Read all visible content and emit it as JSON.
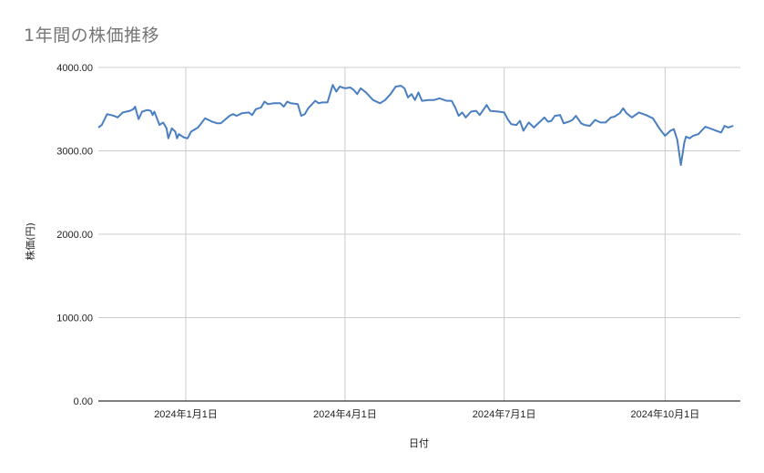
{
  "chart_data": {
    "type": "line",
    "title": "1年間の株価推移",
    "xlabel": "日付",
    "ylabel": "株価(円)",
    "ylim": [
      0,
      4000
    ],
    "y_ticks": [
      "0.00",
      "1000.00",
      "2000.00",
      "3000.00",
      "4000.00"
    ],
    "x_ticks": [
      "2024年1月1日",
      "2024年4月1日",
      "2024年7月1日",
      "2024年10月1日"
    ],
    "x_range": [
      "2023-11-12",
      "2024-11-13"
    ],
    "grid": true,
    "legend": "none",
    "series": [
      {
        "name": "株価",
        "color": "#4a7fc1",
        "points": [
          [
            "2023-11-12",
            3280
          ],
          [
            "2023-11-14",
            3310
          ],
          [
            "2023-11-17",
            3440
          ],
          [
            "2023-11-21",
            3420
          ],
          [
            "2023-11-23",
            3400
          ],
          [
            "2023-11-26",
            3460
          ],
          [
            "2023-11-30",
            3480
          ],
          [
            "2023-12-02",
            3500
          ],
          [
            "2023-12-03",
            3530
          ],
          [
            "2023-12-05",
            3380
          ],
          [
            "2023-12-07",
            3470
          ],
          [
            "2023-12-10",
            3490
          ],
          [
            "2023-12-12",
            3480
          ],
          [
            "2023-12-13",
            3430
          ],
          [
            "2023-12-14",
            3470
          ],
          [
            "2023-12-17",
            3310
          ],
          [
            "2023-12-19",
            3340
          ],
          [
            "2023-12-21",
            3270
          ],
          [
            "2023-12-22",
            3150
          ],
          [
            "2023-12-24",
            3270
          ],
          [
            "2023-12-26",
            3230
          ],
          [
            "2023-12-27",
            3150
          ],
          [
            "2023-12-28",
            3200
          ],
          [
            "2023-12-31",
            3160
          ],
          [
            "2024-01-02",
            3150
          ],
          [
            "2024-01-04",
            3230
          ],
          [
            "2024-01-08",
            3280
          ],
          [
            "2024-01-12",
            3390
          ],
          [
            "2024-01-16",
            3350
          ],
          [
            "2024-01-19",
            3330
          ],
          [
            "2024-01-21",
            3330
          ],
          [
            "2024-01-26",
            3420
          ],
          [
            "2024-01-28",
            3440
          ],
          [
            "2024-01-30",
            3420
          ],
          [
            "2024-02-02",
            3450
          ],
          [
            "2024-02-06",
            3460
          ],
          [
            "2024-02-08",
            3430
          ],
          [
            "2024-02-10",
            3500
          ],
          [
            "2024-02-13",
            3520
          ],
          [
            "2024-02-15",
            3590
          ],
          [
            "2024-02-17",
            3560
          ],
          [
            "2024-02-20",
            3570
          ],
          [
            "2024-02-24",
            3570
          ],
          [
            "2024-02-26",
            3530
          ],
          [
            "2024-02-28",
            3590
          ],
          [
            "2024-03-01",
            3570
          ],
          [
            "2024-03-05",
            3560
          ],
          [
            "2024-03-07",
            3420
          ],
          [
            "2024-03-09",
            3440
          ],
          [
            "2024-03-11",
            3510
          ],
          [
            "2024-03-15",
            3600
          ],
          [
            "2024-03-17",
            3570
          ],
          [
            "2024-03-19",
            3580
          ],
          [
            "2024-03-22",
            3580
          ],
          [
            "2024-03-25",
            3790
          ],
          [
            "2024-03-27",
            3710
          ],
          [
            "2024-03-29",
            3770
          ],
          [
            "2024-04-01",
            3750
          ],
          [
            "2024-04-04",
            3760
          ],
          [
            "2024-04-06",
            3730
          ],
          [
            "2024-04-08",
            3680
          ],
          [
            "2024-04-10",
            3750
          ],
          [
            "2024-04-13",
            3700
          ],
          [
            "2024-04-17",
            3610
          ],
          [
            "2024-04-21",
            3570
          ],
          [
            "2024-04-24",
            3610
          ],
          [
            "2024-04-27",
            3680
          ],
          [
            "2024-04-30",
            3770
          ],
          [
            "2024-05-03",
            3780
          ],
          [
            "2024-05-05",
            3750
          ],
          [
            "2024-05-07",
            3640
          ],
          [
            "2024-05-09",
            3680
          ],
          [
            "2024-05-11",
            3610
          ],
          [
            "2024-05-13",
            3700
          ],
          [
            "2024-05-15",
            3600
          ],
          [
            "2024-05-19",
            3610
          ],
          [
            "2024-05-22",
            3610
          ],
          [
            "2024-05-25",
            3630
          ],
          [
            "2024-05-29",
            3600
          ],
          [
            "2024-06-01",
            3600
          ],
          [
            "2024-06-03",
            3520
          ],
          [
            "2024-06-05",
            3420
          ],
          [
            "2024-06-07",
            3460
          ],
          [
            "2024-06-09",
            3400
          ],
          [
            "2024-06-12",
            3470
          ],
          [
            "2024-06-15",
            3480
          ],
          [
            "2024-06-17",
            3430
          ],
          [
            "2024-06-21",
            3550
          ],
          [
            "2024-06-23",
            3480
          ],
          [
            "2024-06-28",
            3470
          ],
          [
            "2024-07-01",
            3460
          ],
          [
            "2024-07-03",
            3380
          ],
          [
            "2024-07-05",
            3320
          ],
          [
            "2024-07-08",
            3310
          ],
          [
            "2024-07-10",
            3360
          ],
          [
            "2024-07-12",
            3240
          ],
          [
            "2024-07-15",
            3340
          ],
          [
            "2024-07-18",
            3280
          ],
          [
            "2024-07-21",
            3340
          ],
          [
            "2024-07-24",
            3400
          ],
          [
            "2024-07-26",
            3350
          ],
          [
            "2024-07-28",
            3360
          ],
          [
            "2024-07-30",
            3420
          ],
          [
            "2024-08-02",
            3430
          ],
          [
            "2024-08-04",
            3330
          ],
          [
            "2024-08-07",
            3350
          ],
          [
            "2024-08-09",
            3370
          ],
          [
            "2024-08-11",
            3420
          ],
          [
            "2024-08-14",
            3330
          ],
          [
            "2024-08-16",
            3310
          ],
          [
            "2024-08-19",
            3300
          ],
          [
            "2024-08-22",
            3370
          ],
          [
            "2024-08-25",
            3340
          ],
          [
            "2024-08-28",
            3340
          ],
          [
            "2024-08-31",
            3400
          ],
          [
            "2024-09-02",
            3410
          ],
          [
            "2024-09-05",
            3450
          ],
          [
            "2024-09-07",
            3510
          ],
          [
            "2024-09-09",
            3450
          ],
          [
            "2024-09-12",
            3400
          ],
          [
            "2024-09-16",
            3460
          ],
          [
            "2024-09-20",
            3430
          ],
          [
            "2024-09-24",
            3390
          ],
          [
            "2024-09-28",
            3260
          ],
          [
            "2024-10-01",
            3180
          ],
          [
            "2024-10-04",
            3240
          ],
          [
            "2024-10-06",
            3260
          ],
          [
            "2024-10-08",
            3130
          ],
          [
            "2024-10-10",
            2830
          ],
          [
            "2024-10-12",
            3100
          ],
          [
            "2024-10-13",
            3170
          ],
          [
            "2024-10-15",
            3150
          ],
          [
            "2024-10-17",
            3180
          ],
          [
            "2024-10-20",
            3200
          ],
          [
            "2024-10-24",
            3290
          ],
          [
            "2024-10-29",
            3250
          ],
          [
            "2024-11-02",
            3220
          ],
          [
            "2024-11-04",
            3300
          ],
          [
            "2024-11-06",
            3280
          ],
          [
            "2024-11-09",
            3300
          ]
        ]
      }
    ]
  }
}
